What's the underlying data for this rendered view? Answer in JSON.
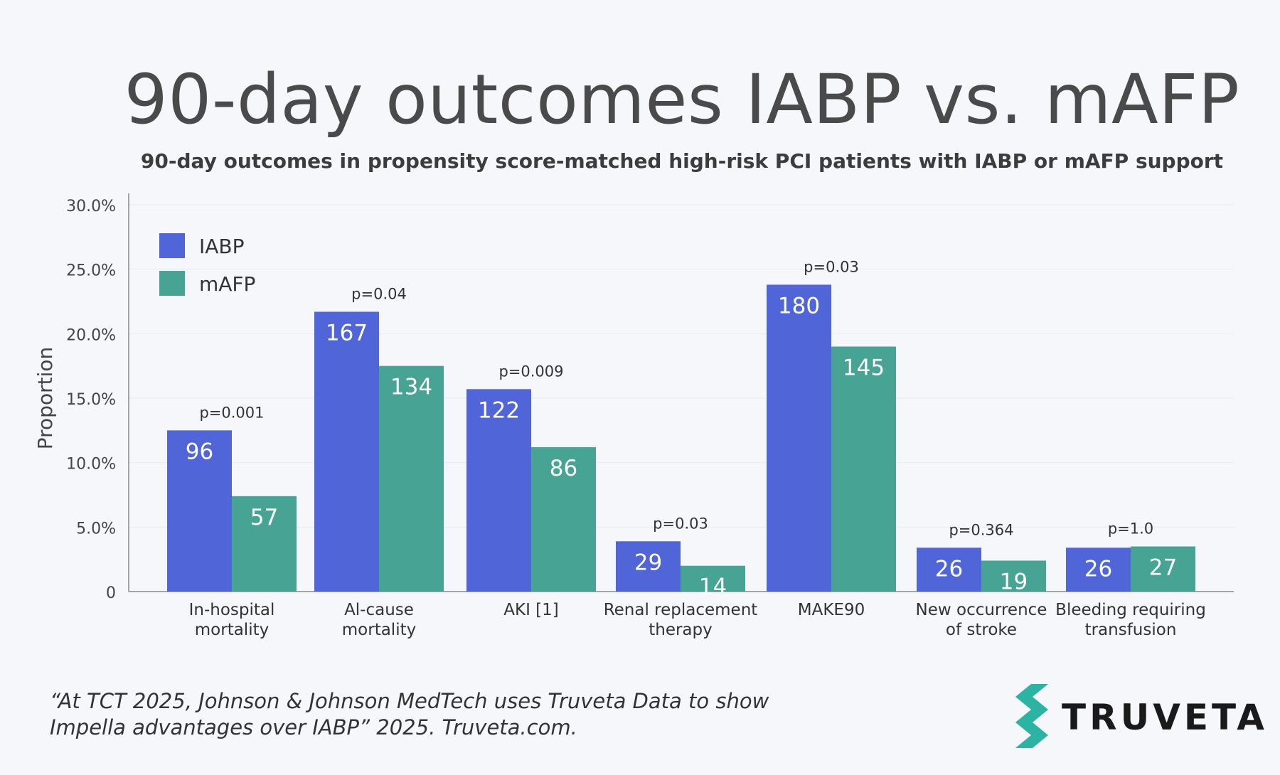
{
  "title": "90-day outcomes IABP vs. mAFP",
  "subtitle": "90-day outcomes in propensity score-matched high-risk PCI patients with IABP or mAFP support",
  "citation": "“At TCT 2025, Johnson & Johnson MedTech uses Truveta Data to show Impella advantages over IABP” 2025. Truveta.com.",
  "logo": {
    "text": "TRUVETA",
    "icon": "truveta-chevron-icon",
    "colors": [
      "#2bb3a3",
      "#1a1a1a"
    ]
  },
  "chart_data": {
    "type": "bar",
    "title": "90-day outcomes IABP vs. mAFP",
    "xlabel": "",
    "ylabel": "Proportion",
    "ylim": [
      0,
      30
    ],
    "yticks": [
      "0",
      "5.0%",
      "10.0%",
      "15.0%",
      "20.0%",
      "25.0%",
      "30.0%"
    ],
    "ytick_values": [
      0,
      5,
      10,
      15,
      20,
      25,
      30
    ],
    "legend_position": "top-left",
    "categories": [
      [
        "In-hospital",
        "mortality"
      ],
      [
        "Al-cause",
        "mortality"
      ],
      [
        "AKI [1]"
      ],
      [
        "Renal replacement",
        "therapy"
      ],
      [
        "MAKE90"
      ],
      [
        "New occurrence",
        "of stroke"
      ],
      [
        "Bleeding requiring",
        "transfusion"
      ]
    ],
    "p_values": [
      "p=0.001",
      "p=0.04",
      "p=0.009",
      "p=0.03",
      "p=0.03",
      "p=0.364",
      "p=1.0"
    ],
    "series": [
      {
        "name": "IABP",
        "color": "#4f65d8",
        "values": [
          12.5,
          21.7,
          15.7,
          3.9,
          23.8,
          3.4,
          3.4
        ],
        "labels": [
          "96",
          "167",
          "122",
          "29",
          "180",
          "26",
          "26"
        ]
      },
      {
        "name": "mAFP",
        "color": "#47a394",
        "values": [
          7.4,
          17.5,
          11.2,
          2.0,
          19.0,
          2.4,
          3.5
        ],
        "labels": [
          "57",
          "134",
          "86",
          "14",
          "145",
          "19",
          "27"
        ]
      }
    ]
  }
}
